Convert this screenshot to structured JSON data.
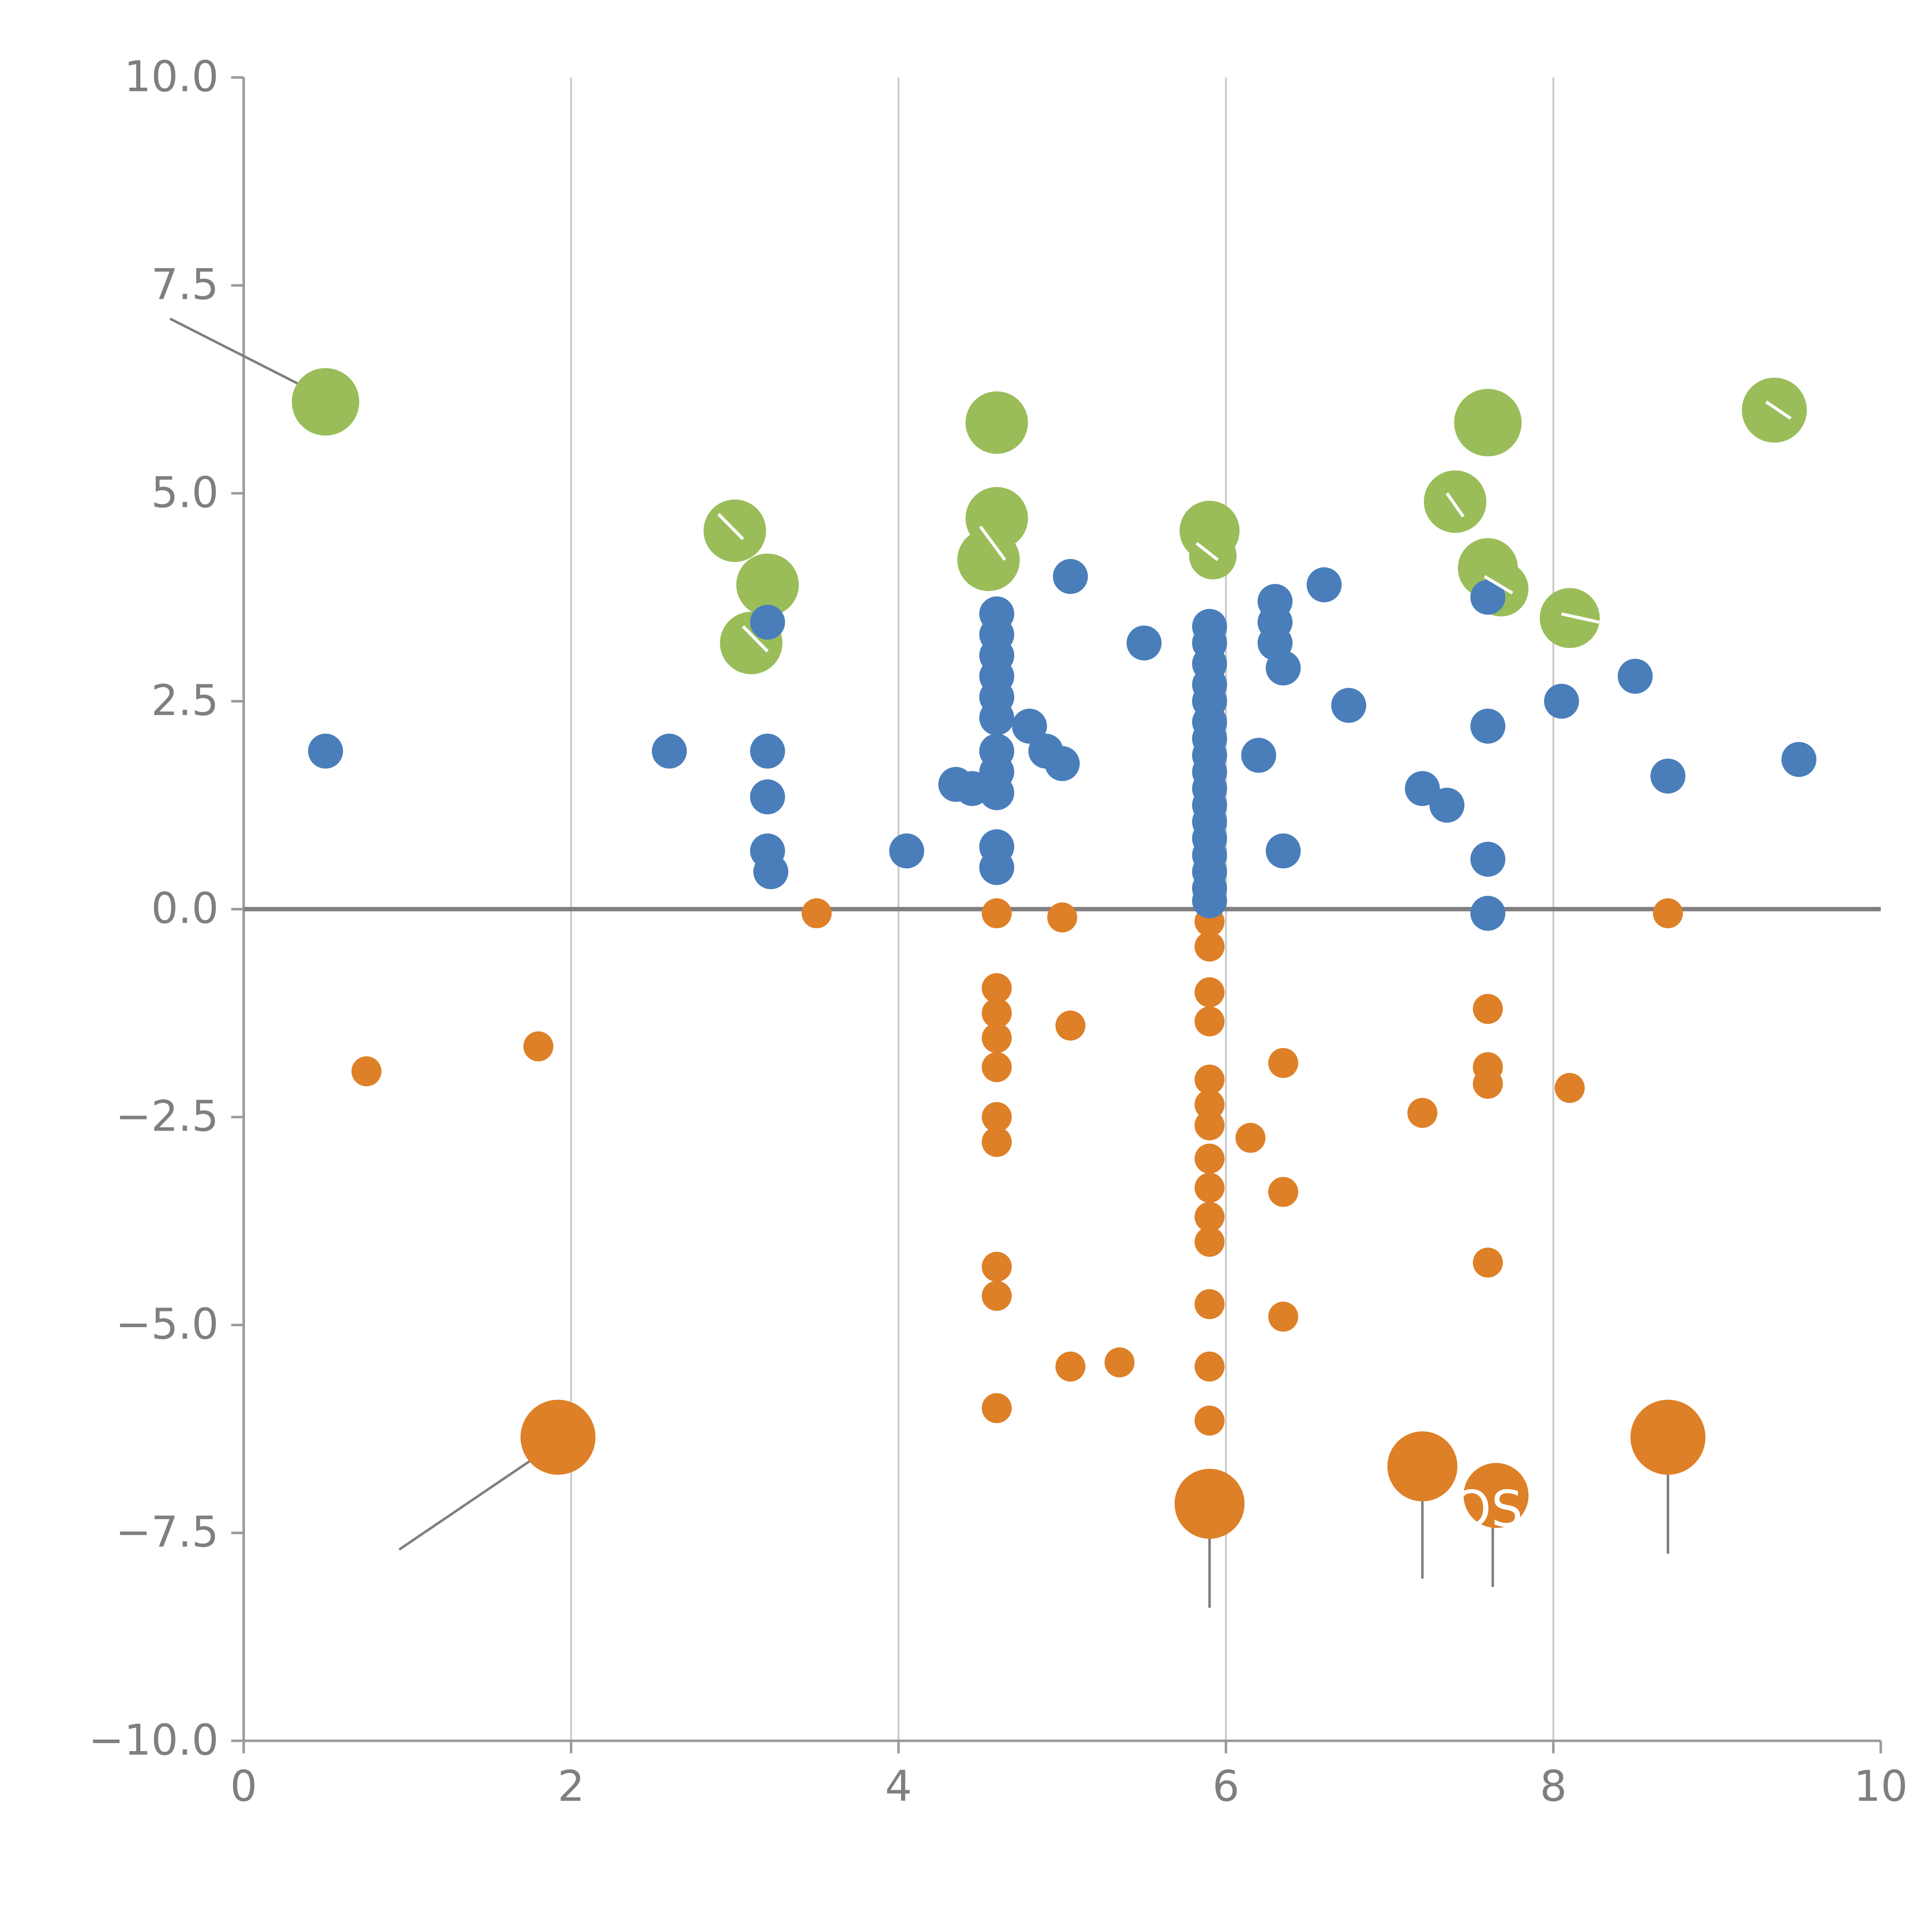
{
  "chart_data": {
    "type": "scatter",
    "title": "",
    "xlabel": "",
    "ylabel": "",
    "xlim": [
      0,
      10
    ],
    "ylim": [
      -10,
      10
    ],
    "x_ticks": [
      0,
      2,
      4,
      6,
      8,
      10
    ],
    "x_tick_labels": [
      "0",
      "2",
      "4",
      "6",
      "8",
      "10"
    ],
    "y_ticks": [
      10.0,
      7.5,
      5.0,
      2.5,
      0.0,
      -2.5,
      -5.0,
      -7.5,
      -10.0
    ],
    "y_tick_labels": [
      "10.0",
      "7.5",
      "5.0",
      "2.5",
      "0.0",
      "−2.5",
      "−5.0",
      "−7.5",
      "−10.0"
    ],
    "grid_x": [
      2,
      4,
      6,
      8
    ],
    "grid_on": true,
    "legend": "none",
    "zero_line": true,
    "colors": {
      "green": "#9abd5a",
      "blue": "#4a7ebb",
      "orange": "#de8027",
      "grid": "#c9c9c9",
      "spine": "#9a9a9a",
      "zero_line": "#808080",
      "tick_label": "#7f7f7f",
      "leader_line": "#7f7f7f",
      "annotation_text": "#ffffff"
    },
    "series": [
      {
        "name": "green",
        "color": "#9abd5a",
        "default_radius": 25,
        "points": [
          [
            0.5,
            6.1,
            27
          ],
          [
            3.0,
            4.55,
            25
          ],
          [
            3.2,
            3.9,
            25
          ],
          [
            3.1,
            3.2,
            25
          ],
          [
            4.6,
            5.85,
            25
          ],
          [
            4.6,
            4.7,
            25
          ],
          [
            4.55,
            4.2,
            25
          ],
          [
            5.9,
            4.55,
            24
          ],
          [
            5.92,
            4.25,
            19
          ],
          [
            7.6,
            5.85,
            27
          ],
          [
            7.4,
            4.9,
            25
          ],
          [
            7.6,
            4.1,
            24
          ],
          [
            7.68,
            3.85,
            22
          ],
          [
            8.1,
            3.5,
            24
          ],
          [
            9.35,
            6.0,
            26
          ]
        ]
      },
      {
        "name": "orange",
        "color": "#de8027",
        "default_radius": 12,
        "points": [
          [
            0.75,
            -1.95,
            12
          ],
          [
            1.8,
            -1.65,
            12
          ],
          [
            1.92,
            -6.35,
            30
          ],
          [
            3.5,
            -0.05,
            12
          ],
          [
            4.6,
            -0.05,
            12
          ],
          [
            4.6,
            -0.95,
            12
          ],
          [
            4.6,
            -1.25,
            12
          ],
          [
            4.6,
            -1.55,
            12
          ],
          [
            4.6,
            -1.9,
            12
          ],
          [
            4.6,
            -2.5,
            12
          ],
          [
            4.6,
            -2.8,
            12
          ],
          [
            4.6,
            -4.3,
            12
          ],
          [
            4.6,
            -4.65,
            12
          ],
          [
            4.6,
            -6.0,
            12
          ],
          [
            5.0,
            -0.1,
            12
          ],
          [
            5.05,
            -1.4,
            12
          ],
          [
            5.05,
            -5.5,
            12
          ],
          [
            5.35,
            -5.45,
            12
          ],
          [
            5.9,
            -0.15,
            12
          ],
          [
            5.9,
            -0.45,
            12
          ],
          [
            5.9,
            -1.0,
            12
          ],
          [
            5.9,
            -1.35,
            12
          ],
          [
            5.9,
            -2.05,
            12
          ],
          [
            5.9,
            -2.35,
            12
          ],
          [
            5.9,
            -2.6,
            12
          ],
          [
            5.9,
            -3.0,
            12
          ],
          [
            5.9,
            -3.35,
            12
          ],
          [
            5.9,
            -3.7,
            12
          ],
          [
            5.9,
            -4.0,
            12
          ],
          [
            5.9,
            -4.75,
            12
          ],
          [
            5.9,
            -5.5,
            12
          ],
          [
            5.9,
            -6.15,
            12
          ],
          [
            5.9,
            -7.15,
            28
          ],
          [
            6.15,
            -2.75,
            12
          ],
          [
            6.35,
            -1.85,
            12
          ],
          [
            6.35,
            -3.4,
            12
          ],
          [
            6.35,
            -4.9,
            12
          ],
          [
            7.2,
            -2.45,
            12
          ],
          [
            7.2,
            -6.7,
            28
          ],
          [
            7.6,
            -1.2,
            12
          ],
          [
            7.6,
            -1.9,
            12
          ],
          [
            7.6,
            -2.1,
            12
          ],
          [
            7.6,
            -4.25,
            12
          ],
          [
            7.65,
            -7.05,
            26
          ],
          [
            8.1,
            -2.15,
            12
          ],
          [
            8.7,
            -0.05,
            12
          ],
          [
            8.7,
            -6.35,
            30
          ]
        ]
      },
      {
        "name": "blue",
        "color": "#4a7ebb",
        "default_radius": 14,
        "points": [
          [
            0.5,
            1.9,
            14
          ],
          [
            2.6,
            1.9,
            14
          ],
          [
            3.2,
            3.45,
            14
          ],
          [
            3.2,
            1.9,
            14
          ],
          [
            3.2,
            1.35,
            14
          ],
          [
            3.2,
            0.7,
            14
          ],
          [
            3.22,
            0.45,
            14
          ],
          [
            4.05,
            0.7,
            14
          ],
          [
            4.35,
            1.5,
            14
          ],
          [
            4.45,
            1.45,
            14
          ],
          [
            4.6,
            3.55,
            14
          ],
          [
            4.6,
            3.3,
            14
          ],
          [
            4.6,
            3.05,
            14
          ],
          [
            4.6,
            2.8,
            14
          ],
          [
            4.6,
            2.55,
            14
          ],
          [
            4.6,
            2.3,
            14
          ],
          [
            4.6,
            1.9,
            14
          ],
          [
            4.6,
            1.65,
            14
          ],
          [
            4.6,
            1.4,
            14
          ],
          [
            4.6,
            0.75,
            14
          ],
          [
            4.6,
            0.5,
            14
          ],
          [
            4.8,
            2.2,
            14
          ],
          [
            4.9,
            1.9,
            14
          ],
          [
            5.0,
            1.75,
            14
          ],
          [
            5.05,
            4.0,
            14
          ],
          [
            5.5,
            3.2,
            14
          ],
          [
            5.9,
            3.4,
            14
          ],
          [
            5.9,
            3.2,
            14
          ],
          [
            5.9,
            2.95,
            14
          ],
          [
            5.9,
            2.7,
            14
          ],
          [
            5.9,
            2.5,
            14
          ],
          [
            5.9,
            2.25,
            14
          ],
          [
            5.9,
            2.05,
            14
          ],
          [
            5.9,
            1.85,
            14
          ],
          [
            5.9,
            1.65,
            14
          ],
          [
            5.9,
            1.45,
            14
          ],
          [
            5.9,
            1.25,
            14
          ],
          [
            5.9,
            1.05,
            14
          ],
          [
            5.9,
            0.85,
            14
          ],
          [
            5.9,
            0.65,
            14
          ],
          [
            5.9,
            0.45,
            14
          ],
          [
            5.9,
            0.25,
            14
          ],
          [
            5.9,
            0.1,
            14
          ],
          [
            6.2,
            1.85,
            14
          ],
          [
            6.3,
            3.7,
            14
          ],
          [
            6.3,
            3.45,
            14
          ],
          [
            6.3,
            3.2,
            14
          ],
          [
            6.35,
            2.9,
            14
          ],
          [
            6.35,
            0.7,
            14
          ],
          [
            6.6,
            3.9,
            14
          ],
          [
            6.75,
            2.45,
            14
          ],
          [
            7.2,
            1.45,
            14
          ],
          [
            7.35,
            1.25,
            14
          ],
          [
            7.6,
            3.75,
            14
          ],
          [
            7.6,
            2.2,
            14
          ],
          [
            7.6,
            0.6,
            14
          ],
          [
            7.6,
            -0.05,
            14
          ],
          [
            8.05,
            2.5,
            14
          ],
          [
            8.5,
            2.8,
            14
          ],
          [
            8.7,
            1.6,
            14
          ],
          [
            9.5,
            1.8,
            14
          ]
        ]
      }
    ],
    "leader_lines": [
      {
        "x1": -0.45,
        "y1": 7.1,
        "x2": 0.45,
        "y2": 6.2,
        "color": "#7f7f7f"
      },
      {
        "x1": 0.95,
        "y1": -7.7,
        "x2": 1.85,
        "y2": -6.5,
        "color": "#7f7f7f"
      },
      {
        "x1": 5.9,
        "y1": -7.4,
        "x2": 5.9,
        "y2": -8.4,
        "color": "#7f7f7f"
      },
      {
        "x1": 7.2,
        "y1": -6.95,
        "x2": 7.2,
        "y2": -8.05,
        "color": "#7f7f7f"
      },
      {
        "x1": 7.63,
        "y1": -7.3,
        "x2": 7.63,
        "y2": -8.15,
        "color": "#7f7f7f"
      },
      {
        "x1": 8.7,
        "y1": -6.6,
        "x2": 8.7,
        "y2": -7.75,
        "color": "#7f7f7f"
      },
      {
        "x1": 2.9,
        "y1": 4.75,
        "x2": 3.05,
        "y2": 4.45,
        "color": "#ffffff"
      },
      {
        "x1": 3.05,
        "y1": 3.4,
        "x2": 3.2,
        "y2": 3.1,
        "color": "#ffffff"
      },
      {
        "x1": 4.5,
        "y1": 4.6,
        "x2": 4.65,
        "y2": 4.2,
        "color": "#ffffff"
      },
      {
        "x1": 5.82,
        "y1": 4.4,
        "x2": 5.95,
        "y2": 4.2,
        "color": "#ffffff"
      },
      {
        "x1": 7.35,
        "y1": 5.0,
        "x2": 7.45,
        "y2": 4.72,
        "color": "#ffffff"
      },
      {
        "x1": 7.58,
        "y1": 4.0,
        "x2": 7.75,
        "y2": 3.8,
        "color": "#ffffff"
      },
      {
        "x1": 8.05,
        "y1": 3.55,
        "x2": 8.28,
        "y2": 3.45,
        "color": "#ffffff"
      },
      {
        "x1": 9.3,
        "y1": 6.1,
        "x2": 9.45,
        "y2": 5.9,
        "color": "#ffffff"
      }
    ],
    "annotations": [
      {
        "x": 7.38,
        "y": -7.42,
        "text": "OS",
        "color": "#ffffff",
        "size": 40
      }
    ]
  }
}
